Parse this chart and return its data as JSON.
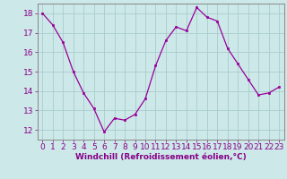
{
  "x": [
    0,
    1,
    2,
    3,
    4,
    5,
    6,
    7,
    8,
    9,
    10,
    11,
    12,
    13,
    14,
    15,
    16,
    17,
    18,
    19,
    20,
    21,
    22,
    23
  ],
  "y": [
    18.0,
    17.4,
    16.5,
    15.0,
    13.9,
    13.1,
    11.9,
    12.6,
    12.5,
    12.8,
    13.6,
    15.3,
    16.6,
    17.3,
    17.1,
    18.3,
    17.8,
    17.6,
    16.2,
    15.4,
    14.6,
    13.8,
    13.9,
    14.2
  ],
  "line_color": "#990099",
  "marker": "s",
  "marker_size": 2.0,
  "bg_color": "#cce8e8",
  "grid_color": "#aacccc",
  "xlabel": "Windchill (Refroidissement éolien,°C)",
  "ylabel": "",
  "ylim": [
    11.5,
    18.5
  ],
  "xlim": [
    -0.5,
    23.5
  ],
  "yticks": [
    12,
    13,
    14,
    15,
    16,
    17,
    18
  ],
  "xticks": [
    0,
    1,
    2,
    3,
    4,
    5,
    6,
    7,
    8,
    9,
    10,
    11,
    12,
    13,
    14,
    15,
    16,
    17,
    18,
    19,
    20,
    21,
    22,
    23
  ],
  "xlabel_fontsize": 6.5,
  "tick_fontsize": 6.5,
  "tick_color": "#880088",
  "spine_color": "#888888",
  "linewidth": 0.9
}
